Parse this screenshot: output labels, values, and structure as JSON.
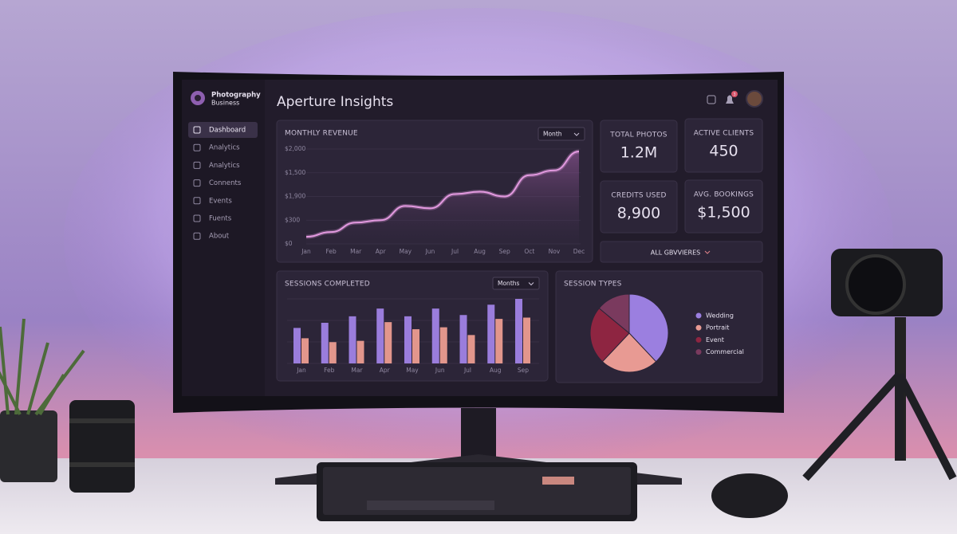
{
  "sidebar": {
    "brand": [
      "Photography",
      "Business"
    ],
    "nav": [
      "Dashboard",
      "Analytics",
      "Analytics",
      "Connents",
      "Events",
      "Fuents",
      "About"
    ]
  },
  "header": {
    "title": "Aperture Insights",
    "notification_count": "3"
  },
  "kpis": [
    {
      "label": "TOTAL PHOTOS",
      "value": "1.2M"
    },
    {
      "label": "ACTIVE CLIENTS",
      "value": "450"
    },
    {
      "label": "CREDITS USED",
      "value": "8,900"
    },
    {
      "label": "AVG. BOOKINGS",
      "value": "$1,500"
    }
  ],
  "all_services_button": "ALL GBVVIERES",
  "revenue_chart": {
    "type": "line",
    "title": "MONTHLY REVENUE",
    "dropdown": "Month",
    "categories": [
      "Jan",
      "Feb",
      "Mar",
      "Apr",
      "May",
      "Jun",
      "Jul",
      "Aug",
      "Sep",
      "Oct",
      "Nov",
      "Dec"
    ],
    "values": [
      150,
      250,
      450,
      500,
      800,
      750,
      1050,
      1100,
      1000,
      1450,
      1550,
      1950
    ],
    "y_labels": [
      "$2,000",
      "$1,500",
      "$1,900",
      "$300",
      "$0"
    ],
    "ylim": [
      0,
      2000
    ],
    "color": "#e39ae0",
    "grid": true
  },
  "sessions_chart": {
    "type": "bar",
    "title": "SESSIONS COMPLETED",
    "dropdown": "Months",
    "categories": [
      "Jan",
      "Feb",
      "Mar",
      "Apr",
      "May",
      "Jun",
      "Jul",
      "Aug",
      "Sep"
    ],
    "ylim": [
      0,
      100
    ],
    "series": [
      {
        "color": "#9a7ddc",
        "values": [
          55,
          63,
          73,
          85,
          73,
          85,
          75,
          91,
          100
        ]
      },
      {
        "color": "#e2968c",
        "values": [
          39,
          33,
          35,
          64,
          53,
          56,
          44,
          69,
          71
        ]
      }
    ],
    "grid": true
  },
  "pie_chart": {
    "type": "pie",
    "title": "SESSION TYPES",
    "categories": [
      "Wedding",
      "Portrait",
      "Event",
      "Commercial"
    ],
    "values": [
      38,
      24,
      24,
      14
    ],
    "colors": [
      "#9b7fe0",
      "#e89a93",
      "#8e2541",
      "#7a3a5e"
    ]
  }
}
